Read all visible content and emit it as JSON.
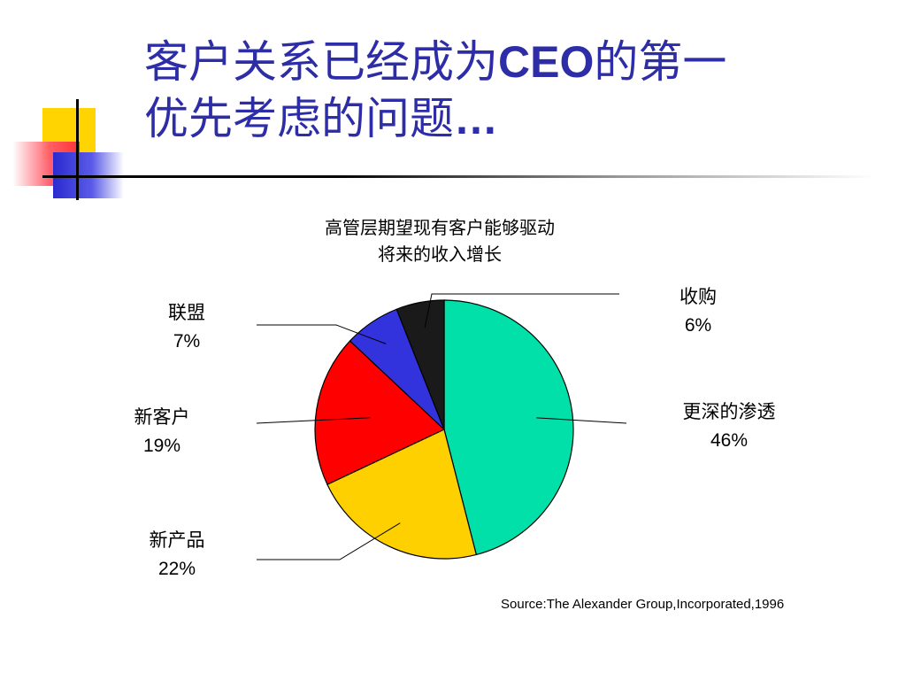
{
  "slide": {
    "title_line1_prefix": "客户关系已经成为",
    "title_line1_bold": "CEO",
    "title_line1_suffix": "的第一",
    "title_line2_text": "优先考虑的问题",
    "title_line2_bold": "…",
    "title_color": "#2d2da8",
    "source": "Source:The Alexander Group,Incorporated,1996"
  },
  "chart_data": {
    "type": "pie",
    "title_line1": "高管层期望现有客户能够驱动",
    "title_line2": "将来的收入增长",
    "slices": [
      {
        "label": "更深的渗透",
        "percent_label": "46%",
        "value": 46,
        "color": "#00e0a8"
      },
      {
        "label": "新产品",
        "percent_label": "22%",
        "value": 22,
        "color": "#ffd000"
      },
      {
        "label": "新客户",
        "percent_label": "19%",
        "value": 19,
        "color": "#ff0000"
      },
      {
        "label": "联盟",
        "percent_label": "7%",
        "value": 7,
        "color": "#3333dd"
      },
      {
        "label": "收购",
        "percent_label": "6%",
        "value": 6,
        "color": "#1a1a1a"
      }
    ],
    "start": "12 o'clock",
    "direction": "clockwise"
  }
}
